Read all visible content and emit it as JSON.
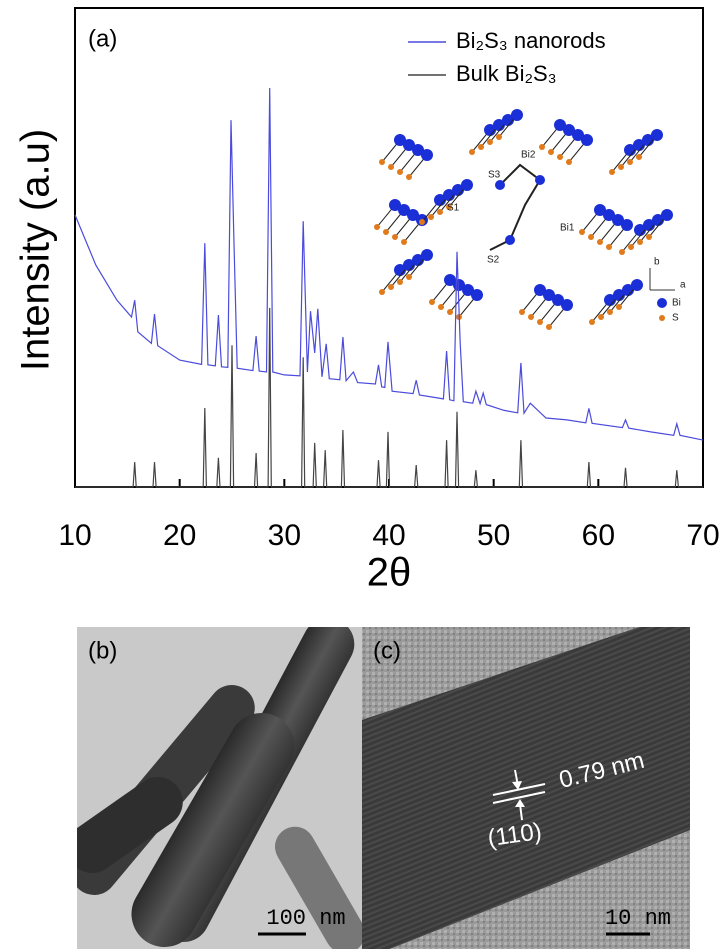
{
  "chart_data": {
    "type": "line",
    "panel_label": "(a)",
    "xlabel": "2θ",
    "ylabel": "Intensity (a.u)",
    "xlim": [
      10,
      70
    ],
    "xticks": [
      10,
      20,
      30,
      40,
      50,
      60,
      70
    ],
    "ylim": [
      0,
      100
    ],
    "legend": "upper right",
    "series": [
      {
        "name": "Bi₂S₃ nanorods",
        "color": "#4b4bdc",
        "x": [
          10,
          12,
          14,
          15.4,
          15.7,
          16.0,
          17.3,
          17.6,
          17.9,
          20,
          22.1,
          22.4,
          22.7,
          23.4,
          23.7,
          24.0,
          24.6,
          24.9,
          25.2,
          25.5,
          27.0,
          27.3,
          27.6,
          28.3,
          28.6,
          28.9,
          30,
          31.5,
          31.8,
          32.2,
          32.5,
          32.9,
          33.2,
          33.6,
          34.0,
          34.3,
          35.3,
          35.6,
          35.9,
          36.6,
          37.0,
          38.7,
          39.0,
          39.3,
          39.6,
          39.9,
          40.3,
          42.3,
          42.6,
          42.9,
          45.2,
          45.5,
          45.8,
          46.2,
          46.5,
          46.8,
          47.1,
          48.0,
          48.3,
          48.7,
          49.0,
          49.3,
          51.0,
          52.3,
          52.6,
          52.9,
          53.5,
          55,
          57,
          58.8,
          59.1,
          59.4,
          62.3,
          62.6,
          62.9,
          65,
          67.2,
          67.5,
          67.8,
          70
        ],
        "values": [
          56.8,
          46.3,
          39.0,
          35.5,
          39.0,
          32.4,
          30.0,
          36.1,
          29.5,
          26.5,
          25.6,
          50.9,
          25.5,
          25.3,
          35.9,
          25.1,
          25.0,
          76.6,
          50.0,
          24.8,
          24.3,
          31.5,
          24.2,
          24.0,
          83.3,
          24.0,
          23.4,
          23.2,
          55.5,
          24.0,
          36.7,
          28.0,
          37.2,
          23.0,
          29.9,
          22.6,
          22.4,
          31.3,
          22.2,
          24.0,
          21.8,
          21.5,
          25.5,
          20.9,
          20.8,
          30.3,
          20.0,
          19.5,
          22.3,
          19.2,
          18.4,
          28.4,
          18.2,
          18.0,
          49.1,
          30.0,
          17.8,
          17.5,
          20.0,
          17.4,
          19.6,
          17.2,
          16.0,
          15.5,
          25.9,
          15.4,
          17.5,
          14.4,
          14.0,
          13.4,
          16.4,
          13.3,
          12.4,
          14.0,
          12.3,
          11.5,
          10.8,
          13.2,
          10.8,
          9.8
        ]
      },
      {
        "name": "Bulk Bi₂S₃",
        "color": "#444444",
        "x": [
          10,
          15.55,
          15.7,
          15.85,
          17.45,
          17.6,
          17.75,
          22.25,
          22.4,
          22.55,
          23.55,
          23.7,
          23.85,
          24.85,
          25.0,
          25.15,
          27.15,
          27.3,
          27.45,
          28.45,
          28.6,
          28.75,
          31.65,
          31.8,
          31.95,
          32.75,
          32.9,
          33.05,
          33.75,
          33.9,
          34.05,
          35.45,
          35.6,
          35.75,
          38.85,
          39.0,
          39.15,
          39.75,
          39.9,
          40.05,
          42.45,
          42.6,
          42.75,
          45.35,
          45.5,
          45.65,
          46.35,
          46.5,
          46.65,
          48.15,
          48.3,
          48.45,
          52.45,
          52.6,
          52.75,
          58.95,
          59.1,
          59.25,
          62.45,
          62.6,
          62.75,
          67.35,
          67.5,
          67.65,
          70
        ],
        "values": [
          0,
          0,
          5.2,
          0,
          0,
          5.2,
          0,
          0,
          16.5,
          0,
          0,
          6.1,
          0,
          0,
          29.6,
          0,
          0,
          7.1,
          0,
          0,
          37.4,
          0,
          0,
          27.1,
          0,
          0,
          9.2,
          0,
          0,
          7.7,
          0,
          0,
          11.9,
          0,
          0,
          5.6,
          0,
          0,
          11.5,
          0,
          0,
          4.6,
          0,
          0,
          9.8,
          0,
          0,
          15.7,
          0,
          0,
          3.5,
          0,
          0,
          9.8,
          0,
          0,
          5.2,
          0,
          0,
          4.0,
          0,
          0,
          3.5,
          0,
          0
        ]
      }
    ]
  },
  "inset": {
    "labels": [
      "Bi2",
      "S3",
      "S1",
      "Bi1",
      "S2",
      "b",
      "a",
      "Bi",
      "S"
    ]
  },
  "panels": [
    {
      "label": "(b)",
      "scale_bar": "100 nm"
    },
    {
      "label": "(c)",
      "scale_bar": "10 nm",
      "spacing": "0.79 nm",
      "plane": "(110)"
    }
  ]
}
